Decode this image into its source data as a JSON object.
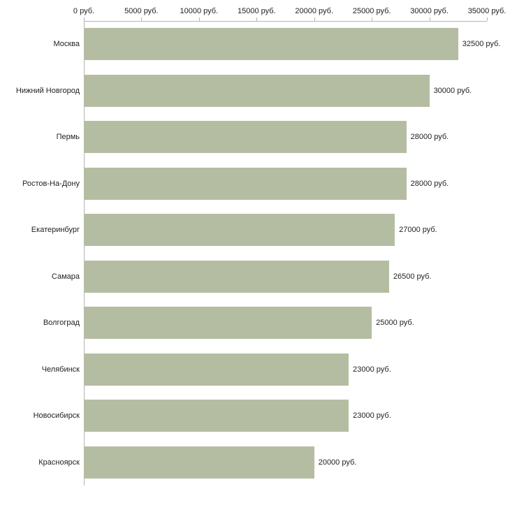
{
  "chart_data": {
    "type": "bar",
    "orientation": "horizontal",
    "title": "",
    "xlabel": "",
    "ylabel": "",
    "xlim": [
      0,
      35000
    ],
    "x_ticks": [
      0,
      5000,
      10000,
      15000,
      20000,
      25000,
      30000,
      35000
    ],
    "x_tick_labels": [
      "0 руб.",
      "5000 руб.",
      "10000 руб.",
      "15000 руб.",
      "20000 руб.",
      "25000 руб.",
      "30000 руб.",
      "35000 руб."
    ],
    "categories": [
      "Москва",
      "Нижний Новгород",
      "Пермь",
      "Ростов-На-Дону",
      "Екатеринбург",
      "Самара",
      "Волгоград",
      "Челябинск",
      "Новосибирск",
      "Красноярск"
    ],
    "values": [
      32500,
      30000,
      28000,
      28000,
      27000,
      26500,
      25000,
      23000,
      23000,
      20000
    ],
    "value_labels": [
      "32500 руб.",
      "30000 руб.",
      "28000 руб.",
      "28000 руб.",
      "27000 руб.",
      "26500 руб.",
      "25000 руб.",
      "23000 руб.",
      "23000 руб.",
      "20000 руб."
    ],
    "grid": false,
    "legend": false,
    "colors": {
      "bar_fill": "#b4bda2",
      "axis_line": "#b3b3b3",
      "text": "#222222",
      "background": "#ffffff"
    }
  }
}
